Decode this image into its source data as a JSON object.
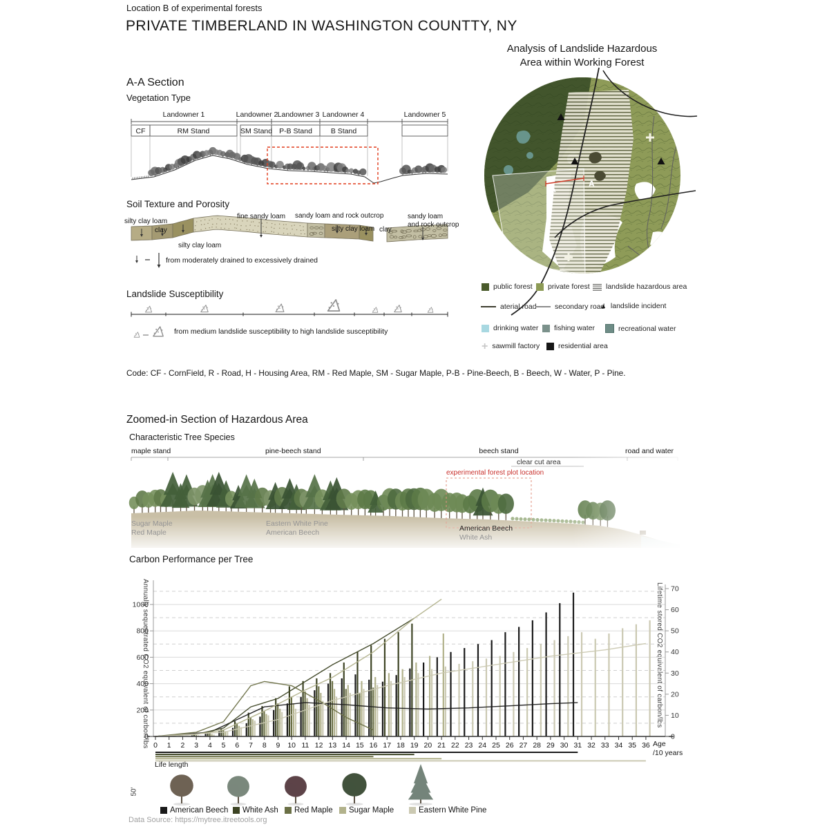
{
  "header": {
    "suptitle": "Location B of experimental forests",
    "title": "PRIVATE TIMBERLAND IN WASHINGTON COUNTTY, NY"
  },
  "map_panel": {
    "title_line1": "Analysis of Landslide Hazardous",
    "title_line2": "Area within Working Forest",
    "marker_a_left": "A",
    "marker_a_right": "A",
    "legend": {
      "public_forest": {
        "label": "public forest",
        "color": "#4a5b2b"
      },
      "private_forest": {
        "label": "private forest",
        "color": "#8c9a55"
      },
      "hazard": {
        "label": "landslide hazardous area"
      },
      "arterial": {
        "label": "aterial road",
        "color": "#3c3c2e"
      },
      "secondary": {
        "label": "secondary road",
        "color": "#8b8b8b"
      },
      "incident": {
        "label": "landslide incident",
        "glyph": "▲"
      },
      "drinking": {
        "label": "drinking water",
        "color": "#a8d8e1"
      },
      "fishing": {
        "label": "fishing water",
        "color": "#7b918b"
      },
      "recreational": {
        "label": "recreational water",
        "color": "#6e8c86"
      },
      "sawmill": {
        "label": "sawmill factory",
        "glyph": "+",
        "color": "#c9c9c9"
      },
      "residential": {
        "label": "residential area",
        "color": "#161616"
      }
    }
  },
  "section_aa": {
    "heading": "A-A Section",
    "subheading": "Vegetation Type",
    "landowners": [
      "Landowner 1",
      "Landowner 2",
      "Landowner 3",
      "Landowner 4",
      "Landowner 5"
    ],
    "stands": [
      "CF",
      "RM Stand",
      "SM Stand",
      "P-B Stand",
      "B Stand"
    ]
  },
  "soil": {
    "heading": "Soil Texture and Porosity",
    "labels": {
      "l1": "silty clay loam",
      "l2": "clay",
      "l3": "silty clay  loam",
      "l4": "fine sandy loam",
      "l5": "sandy loam and rock outcrop",
      "l6": "silty clay  loam",
      "l7": "clay",
      "l8": "sandy loam",
      "l9": "and rock outcrop"
    },
    "legend": "from moderately drained to excessively drained"
  },
  "landslide": {
    "heading": "Landslide Susceptibility",
    "legend": "from medium landslide susceptibility to high landslide susceptibility"
  },
  "code_line": "Code: CF - CornField, R - Road, H - Housing Area, RM - Red Maple, SM - Sugar Maple, P-B - Pine-Beech, B - Beech, W - Water, P - Pine.",
  "zoomed": {
    "heading": "Zoomed-in Section of Hazardous Area",
    "subheading": "Characteristic Tree Species",
    "stands": [
      "maple stand",
      "pine-beech stand",
      "beech stand",
      "road and water"
    ],
    "clearcut_label": "clear cut area",
    "plot_label": "experimental forest plot location",
    "species_groups": [
      {
        "line1": "Sugar Maple",
        "line2": "Red Maple"
      },
      {
        "line1": "Eastern White Pine",
        "line2": "American Beech"
      },
      {
        "line1": "American Beech",
        "line2": "White Ash"
      }
    ]
  },
  "chart": {
    "heading": "Carbon Performance per Tree"
  },
  "chart_data": {
    "type": "bar+line",
    "title": "Carbon Performance per Tree",
    "xlabel_line1": "Age",
    "xlabel_line2": "/10 years",
    "ylabel_left": "Annually sequestrated CO2 equivalent of carbon/lbs",
    "ylabel_right": "Lifetime stored CO2 equivalent of carbon/lbs",
    "ages": [
      0,
      1,
      2,
      3,
      4,
      5,
      6,
      7,
      8,
      9,
      10,
      11,
      12,
      13,
      14,
      15,
      16,
      17,
      18,
      19,
      20,
      21,
      22,
      23,
      24,
      25,
      26,
      27,
      28,
      29,
      30,
      31,
      32,
      33,
      34,
      35,
      36
    ],
    "ylim_left": [
      0,
      1150
    ],
    "yticks_left": [
      0,
      200,
      400,
      600,
      800,
      1000
    ],
    "yticks_left_dashed": [
      100,
      300,
      500,
      700,
      900,
      1100
    ],
    "ylim_right": [
      0,
      70
    ],
    "yticks_right": [
      0,
      10,
      20,
      30,
      40,
      50,
      60,
      70
    ],
    "grid": true,
    "legend_position": "below",
    "bar_series": [
      {
        "name": "American Beech",
        "color": "#1a1a1a",
        "life_length": 31,
        "values": [
          0,
          0,
          2,
          8,
          20,
          40,
          65,
          100,
          150,
          200,
          250,
          300,
          350,
          400,
          440,
          470,
          430,
          415,
          465,
          515,
          560,
          600,
          640,
          670,
          700,
          730,
          790,
          830,
          880,
          940,
          1010,
          1090
        ]
      },
      {
        "name": "White Ash",
        "color": "#3d4424",
        "life_length": 19,
        "values": [
          0,
          0,
          3,
          12,
          28,
          55,
          115,
          180,
          230,
          290,
          380,
          420,
          440,
          480,
          560,
          640,
          690,
          740,
          790,
          855
        ]
      },
      {
        "name": "Red Maple",
        "color": "#6b7046",
        "life_length": 16,
        "values": [
          0,
          0,
          2,
          9,
          26,
          52,
          100,
          145,
          190,
          250,
          300,
          340,
          380,
          420,
          360,
          330,
          370
        ]
      },
      {
        "name": "Sugar Maple",
        "color": "#b2b28c",
        "life_length": 21,
        "values": [
          0,
          0,
          2,
          7,
          18,
          40,
          80,
          130,
          170,
          210,
          250,
          290,
          330,
          360,
          390,
          420,
          450,
          480,
          510,
          560,
          610,
          780
        ]
      },
      {
        "name": "Eastern White Pine",
        "color": "#cbc9b2",
        "life_length": 36,
        "values": [
          0,
          0,
          1,
          5,
          14,
          35,
          70,
          120,
          160,
          185,
          210,
          240,
          270,
          300,
          330,
          360,
          390,
          420,
          450,
          480,
          510,
          530,
          550,
          570,
          590,
          610,
          640,
          670,
          700,
          730,
          760,
          790,
          740,
          780,
          820,
          850,
          880
        ]
      }
    ],
    "line_series": [
      {
        "name": "American Beech lifetime stored CO2",
        "color": "#1a1a1a",
        "points": [
          [
            0,
            0
          ],
          [
            4,
            2
          ],
          [
            6,
            8
          ],
          [
            8,
            14
          ],
          [
            11,
            16
          ],
          [
            14,
            15
          ],
          [
            17,
            13.5
          ],
          [
            20,
            13
          ],
          [
            23,
            13.5
          ],
          [
            26,
            14.5
          ],
          [
            29,
            15.5
          ],
          [
            31,
            16
          ]
        ]
      },
      {
        "name": "White Ash lifetime stored CO2",
        "color": "#3d4424",
        "points": [
          [
            0,
            0
          ],
          [
            3,
            1
          ],
          [
            5,
            4
          ],
          [
            7,
            14
          ],
          [
            9,
            18
          ],
          [
            11,
            26
          ],
          [
            13,
            34
          ],
          [
            16,
            44
          ],
          [
            19,
            56
          ]
        ]
      },
      {
        "name": "Red Maple lifetime stored CO2",
        "color": "#6b7046",
        "points": [
          [
            0,
            0
          ],
          [
            3,
            2
          ],
          [
            5,
            7
          ],
          [
            7,
            24
          ],
          [
            8,
            26
          ],
          [
            10,
            24
          ],
          [
            12,
            17
          ],
          [
            14,
            9
          ],
          [
            16,
            3
          ]
        ]
      },
      {
        "name": "Sugar Maple lifetime stored CO2",
        "color": "#b2b28c",
        "points": [
          [
            0,
            0
          ],
          [
            3,
            1
          ],
          [
            5,
            3
          ],
          [
            8,
            12
          ],
          [
            11,
            22
          ],
          [
            13,
            28
          ],
          [
            16,
            40
          ],
          [
            19,
            56
          ],
          [
            21,
            65
          ]
        ]
      },
      {
        "name": "Eastern White Pine lifetime stored CO2",
        "color": "#cbc9b2",
        "points": [
          [
            0,
            0
          ],
          [
            5,
            2
          ],
          [
            9,
            8
          ],
          [
            13,
            17
          ],
          [
            17,
            24
          ],
          [
            21,
            30
          ],
          [
            25,
            34
          ],
          [
            29,
            38
          ],
          [
            33,
            41
          ],
          [
            36,
            44
          ]
        ]
      }
    ]
  },
  "footer": {
    "life_length_label": "Life length",
    "height_label": "50'",
    "legend": [
      {
        "name": "American Beech",
        "color": "#1a1a1a"
      },
      {
        "name": "White Ash",
        "color": "#3d4424"
      },
      {
        "name": "Red Maple",
        "color": "#6b7046"
      },
      {
        "name": "Sugar Maple",
        "color": "#b2b28c"
      },
      {
        "name": "Eastern White Pine",
        "color": "#cbc9b2"
      }
    ],
    "source": "Data Source: https://mytree.itreetools.org"
  }
}
